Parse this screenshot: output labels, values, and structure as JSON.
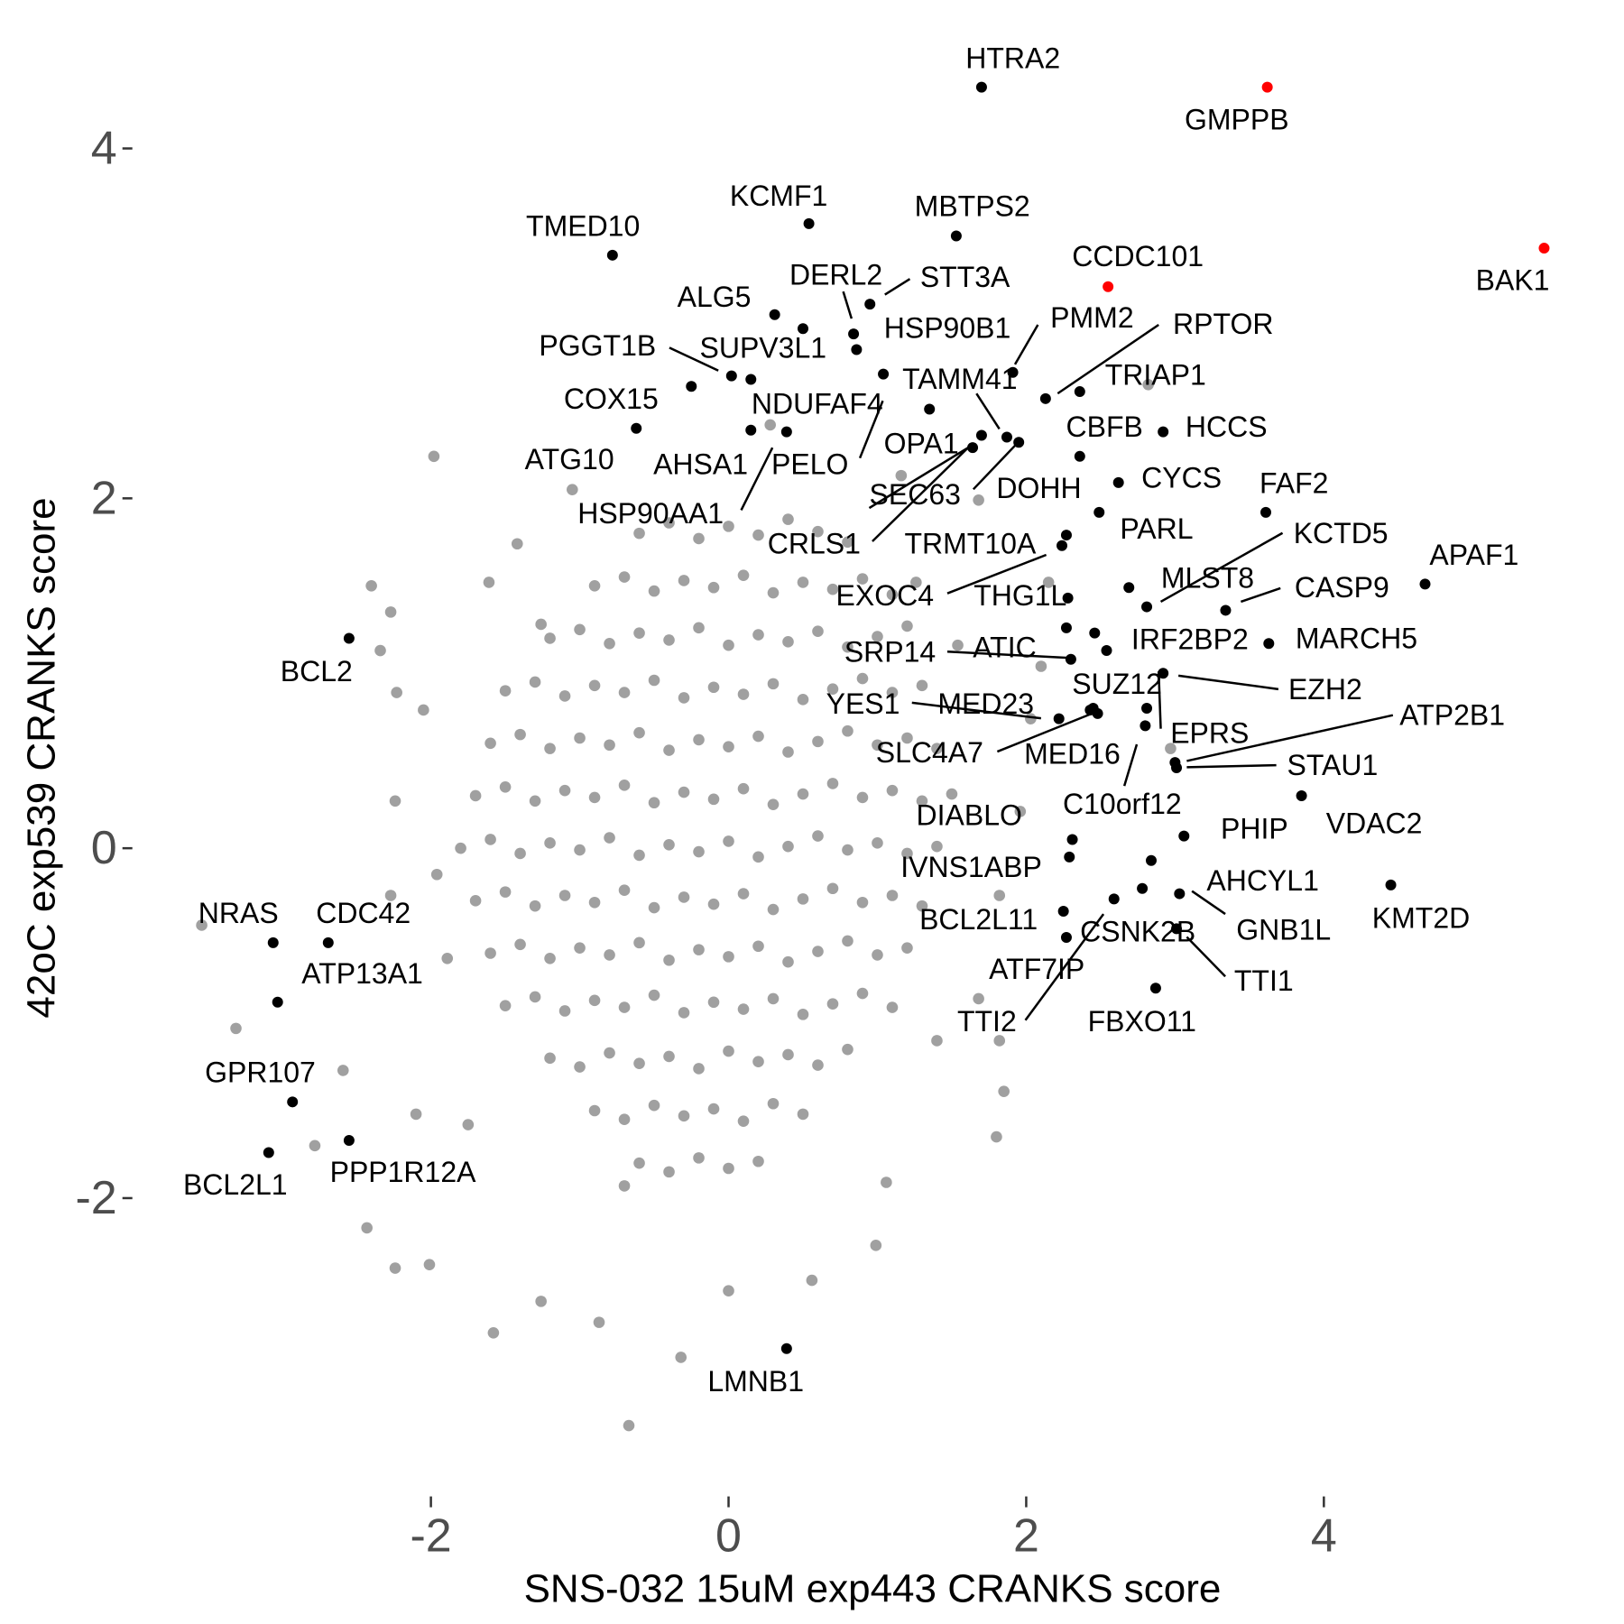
{
  "chart_data": {
    "type": "scatter",
    "x_label": "SNS-032 15uM exp443 CRANKS score",
    "y_label": "42oC exp539 CRANKS score",
    "xlim": [
      -4,
      5.75
    ],
    "ylim": [
      -3.7,
      4.7
    ],
    "xticks": [
      -2,
      0,
      2,
      4
    ],
    "yticks": [
      -2,
      0,
      2,
      4
    ],
    "grid": false,
    "series": [
      {
        "color": "#a0a0a0",
        "x": [
          -0.6,
          -0.4,
          -0.2,
          0,
          0.2,
          0.4,
          0.6,
          0.8,
          -0.9,
          -0.7,
          -0.5,
          -0.3,
          -0.1,
          0.1,
          0.3,
          0.5,
          0.7,
          0.9,
          1.1,
          -1.2,
          -1,
          -0.8,
          -0.6,
          -0.4,
          -0.2,
          0,
          0.2,
          0.4,
          0.6,
          0.8,
          1,
          1.2,
          -1.5,
          -1.3,
          -1.1,
          -0.9,
          -0.7,
          -0.5,
          -0.3,
          -0.1,
          0.1,
          0.3,
          0.5,
          0.7,
          0.9,
          1.1,
          1.3,
          -1.6,
          -1.4,
          -1.2,
          -1,
          -0.8,
          -0.6,
          -0.4,
          -0.2,
          0,
          0.2,
          0.4,
          0.6,
          0.8,
          1,
          1.2,
          1.4,
          -1.7,
          -1.5,
          -1.3,
          -1.1,
          -0.9,
          -0.7,
          -0.5,
          -0.3,
          -0.1,
          0.1,
          0.3,
          0.5,
          0.7,
          0.9,
          1.1,
          1.3,
          1.5,
          -1.8,
          -1.6,
          -1.4,
          -1.2,
          -1,
          -0.8,
          -0.6,
          -0.4,
          -0.2,
          0,
          0.2,
          0.4,
          0.6,
          0.8,
          1,
          1.2,
          1.4,
          -1.7,
          -1.5,
          -1.3,
          -1.1,
          -0.9,
          -0.7,
          -0.5,
          -0.3,
          -0.1,
          0.1,
          0.3,
          0.5,
          0.7,
          0.9,
          1.1,
          1.3,
          -1.6,
          -1.4,
          -1.2,
          -1,
          -0.8,
          -0.6,
          -0.4,
          -0.2,
          0,
          0.2,
          0.4,
          0.6,
          0.8,
          1,
          1.2,
          -1.5,
          -1.3,
          -1.1,
          -0.9,
          -0.7,
          -0.5,
          -0.3,
          -0.1,
          0.1,
          0.3,
          0.5,
          0.7,
          0.9,
          1.1,
          -1.2,
          -1,
          -0.8,
          -0.6,
          -0.4,
          -0.2,
          0,
          0.2,
          0.4,
          0.6,
          0.8,
          -0.9,
          -0.7,
          -0.5,
          -0.3,
          -0.1,
          0.1,
          0.3,
          0.5,
          -0.6,
          -0.4,
          -0.2,
          0,
          0.2,
          -1.98,
          -2.4,
          -2.27,
          -2.34,
          -2.05,
          -2.23,
          -3.54,
          -3.31,
          -2.78,
          -2.43,
          -2.24,
          -2.01,
          -1.58,
          -0.87,
          -0.67,
          -0.32,
          0.99,
          1.06,
          1.8,
          1.85,
          1.68,
          2.82,
          2.15,
          1.68,
          -1.42,
          -1.05,
          0.28,
          1.16,
          2.97,
          2.03,
          -1.96,
          -2.24,
          -2.27,
          -2.59,
          -2.1,
          -1.75,
          -1.26,
          0,
          0.56,
          1.4,
          1.82,
          1.96,
          1.54,
          1.26,
          2.1,
          -0.7,
          -1.61,
          -1.26,
          -1.89,
          1.82
        ],
        "values": [
          1.8,
          1.86,
          1.77,
          1.84,
          1.79,
          1.88,
          1.81,
          1.75,
          1.5,
          1.55,
          1.47,
          1.53,
          1.49,
          1.56,
          1.46,
          1.52,
          1.48,
          1.54,
          1.45,
          1.2,
          1.25,
          1.17,
          1.23,
          1.19,
          1.26,
          1.16,
          1.22,
          1.18,
          1.24,
          1.15,
          1.21,
          1.27,
          0.9,
          0.95,
          0.87,
          0.93,
          0.89,
          0.96,
          0.86,
          0.92,
          0.88,
          0.94,
          0.85,
          0.91,
          0.97,
          0.89,
          0.93,
          0.6,
          0.65,
          0.57,
          0.63,
          0.59,
          0.66,
          0.56,
          0.62,
          0.58,
          0.64,
          0.55,
          0.61,
          0.67,
          0.59,
          0.63,
          0.57,
          0.3,
          0.35,
          0.27,
          0.33,
          0.29,
          0.36,
          0.26,
          0.32,
          0.28,
          0.34,
          0.25,
          0.31,
          0.37,
          0.29,
          0.33,
          0.27,
          0.31,
          0,
          0.05,
          -0.03,
          0.03,
          -0.01,
          0.06,
          -0.04,
          0.02,
          -0.02,
          0.04,
          -0.05,
          0.01,
          0.07,
          -0.01,
          0.03,
          -0.03,
          0.01,
          -0.3,
          -0.25,
          -0.33,
          -0.27,
          -0.31,
          -0.24,
          -0.34,
          -0.28,
          -0.32,
          -0.26,
          -0.35,
          -0.29,
          -0.23,
          -0.31,
          -0.27,
          -0.33,
          -0.6,
          -0.55,
          -0.63,
          -0.57,
          -0.61,
          -0.54,
          -0.64,
          -0.58,
          -0.62,
          -0.56,
          -0.65,
          -0.59,
          -0.53,
          -0.61,
          -0.57,
          -0.9,
          -0.85,
          -0.93,
          -0.87,
          -0.91,
          -0.84,
          -0.94,
          -0.88,
          -0.92,
          -0.86,
          -0.95,
          -0.89,
          -0.83,
          -0.91,
          -1.2,
          -1.25,
          -1.17,
          -1.23,
          -1.19,
          -1.26,
          -1.16,
          -1.22,
          -1.18,
          -1.24,
          -1.15,
          -1.5,
          -1.55,
          -1.47,
          -1.53,
          -1.49,
          -1.56,
          -1.46,
          -1.52,
          -1.8,
          -1.85,
          -1.77,
          -1.83,
          -1.79,
          2.24,
          1.5,
          1.35,
          1.13,
          0.79,
          0.89,
          -0.44,
          -1.03,
          -1.7,
          -2.17,
          -2.4,
          -2.38,
          -2.77,
          -2.71,
          -3.3,
          -2.91,
          -2.27,
          -1.91,
          -1.65,
          -1.39,
          -0.86,
          2.65,
          1.52,
          1.99,
          1.74,
          2.05,
          2.42,
          2.13,
          0.57,
          0.74,
          -0.15,
          0.27,
          -0.27,
          -1.27,
          -1.52,
          -1.58,
          -2.59,
          -2.53,
          -2.47,
          -1.1,
          -0.27,
          0.21,
          1.16,
          1.52,
          1.04,
          -1.93,
          1.52,
          1.28,
          -0.63,
          -1.1
        ]
      },
      {
        "color": "#000000",
        "labels": [
          "HTRA2",
          "KCMF1",
          "MBTPS2",
          "TMED10",
          "DERL2",
          "HSP90B1",
          "STT3A",
          "ALG5",
          "SUPV3L1",
          "PGGT1B",
          "HSP90AA1",
          "COX15",
          "ATG10",
          "NDUFAF4",
          "AHSA1",
          "PELO",
          "OPA1",
          "TAMM41",
          "SEC63",
          "DOHH",
          "CRLS1",
          "PMM2",
          "RPTOR",
          "TRIAP1",
          "CBFB",
          "HCCS",
          "CYCS",
          "FAF2",
          "PARL",
          "KCTD5",
          "APAF1",
          "MLST8",
          "CASP9",
          "TRMT10A",
          "EXOC4",
          "THG1L",
          "IRF2BP2",
          "MARCH5",
          "SRP14",
          "ATIC",
          "SUZ12",
          "EZH2",
          "YES1",
          "MED23",
          "SLC4A7",
          "MED16",
          "EPRS",
          "C10orf12",
          "ATP2B1",
          "STAU1",
          "DIABLO",
          "PHIP",
          "VDAC2",
          "IVNS1ABP",
          "AHCYL1",
          "GNB1L",
          "KMT2D",
          "BCL2L11",
          "CSNK2B",
          "ATF7IP",
          "TTI1",
          "TTI2",
          "FBXO11",
          "BCL2",
          "NRAS",
          "CDC42",
          "ATP13A1",
          "GPR107",
          "BCL2L1",
          "PPP1R12A",
          "LMNB1"
        ],
        "x": [
          1.7,
          0.54,
          1.53,
          -0.78,
          0.84,
          0.86,
          0.95,
          0.31,
          0.15,
          0.02,
          0.5,
          -0.25,
          -0.62,
          0.39,
          0.15,
          1.04,
          1.35,
          1.87,
          1.64,
          1.95,
          1.7,
          1.91,
          2.13,
          2.36,
          2.36,
          2.92,
          2.62,
          3.61,
          2.49,
          2.81,
          4.68,
          2.69,
          3.34,
          2.24,
          2.27,
          2.28,
          2.46,
          3.63,
          2.3,
          2.27,
          2.54,
          2.92,
          2.22,
          2.43,
          2.45,
          2.48,
          2.81,
          2.8,
          3.0,
          3.01,
          2.31,
          3.06,
          3.85,
          2.29,
          2.84,
          3.03,
          4.45,
          2.25,
          2.59,
          2.27,
          3.01,
          2.78,
          2.87,
          -2.55,
          -3.06,
          -2.69,
          -3.03,
          -2.93,
          -3.09,
          -2.55,
          0.39
        ],
        "values": [
          4.35,
          3.57,
          3.5,
          3.39,
          2.94,
          2.85,
          3.11,
          3.05,
          2.68,
          2.7,
          2.97,
          2.64,
          2.4,
          2.38,
          2.39,
          2.71,
          2.51,
          2.35,
          2.29,
          2.32,
          2.36,
          2.72,
          2.57,
          2.61,
          2.24,
          2.38,
          2.09,
          1.92,
          1.92,
          1.38,
          1.51,
          1.49,
          1.36,
          1.73,
          1.79,
          1.43,
          1.23,
          1.17,
          1.08,
          1.26,
          1.13,
          1.0,
          0.74,
          0.79,
          0.8,
          0.77,
          0.8,
          0.7,
          0.49,
          0.46,
          0.05,
          0.07,
          0.3,
          -0.05,
          -0.07,
          -0.26,
          -0.21,
          -0.36,
          -0.29,
          -0.51,
          -0.46,
          -0.23,
          -0.8,
          1.2,
          -0.54,
          -0.54,
          -0.88,
          -1.45,
          -1.74,
          -1.67,
          -2.86
        ]
      },
      {
        "color": "#ff0000",
        "labels": [
          "GMPPB",
          "CCDC101",
          "BAK1"
        ],
        "x": [
          3.62,
          2.55,
          5.48
        ],
        "values": [
          4.35,
          3.21,
          3.43
        ]
      }
    ]
  }
}
